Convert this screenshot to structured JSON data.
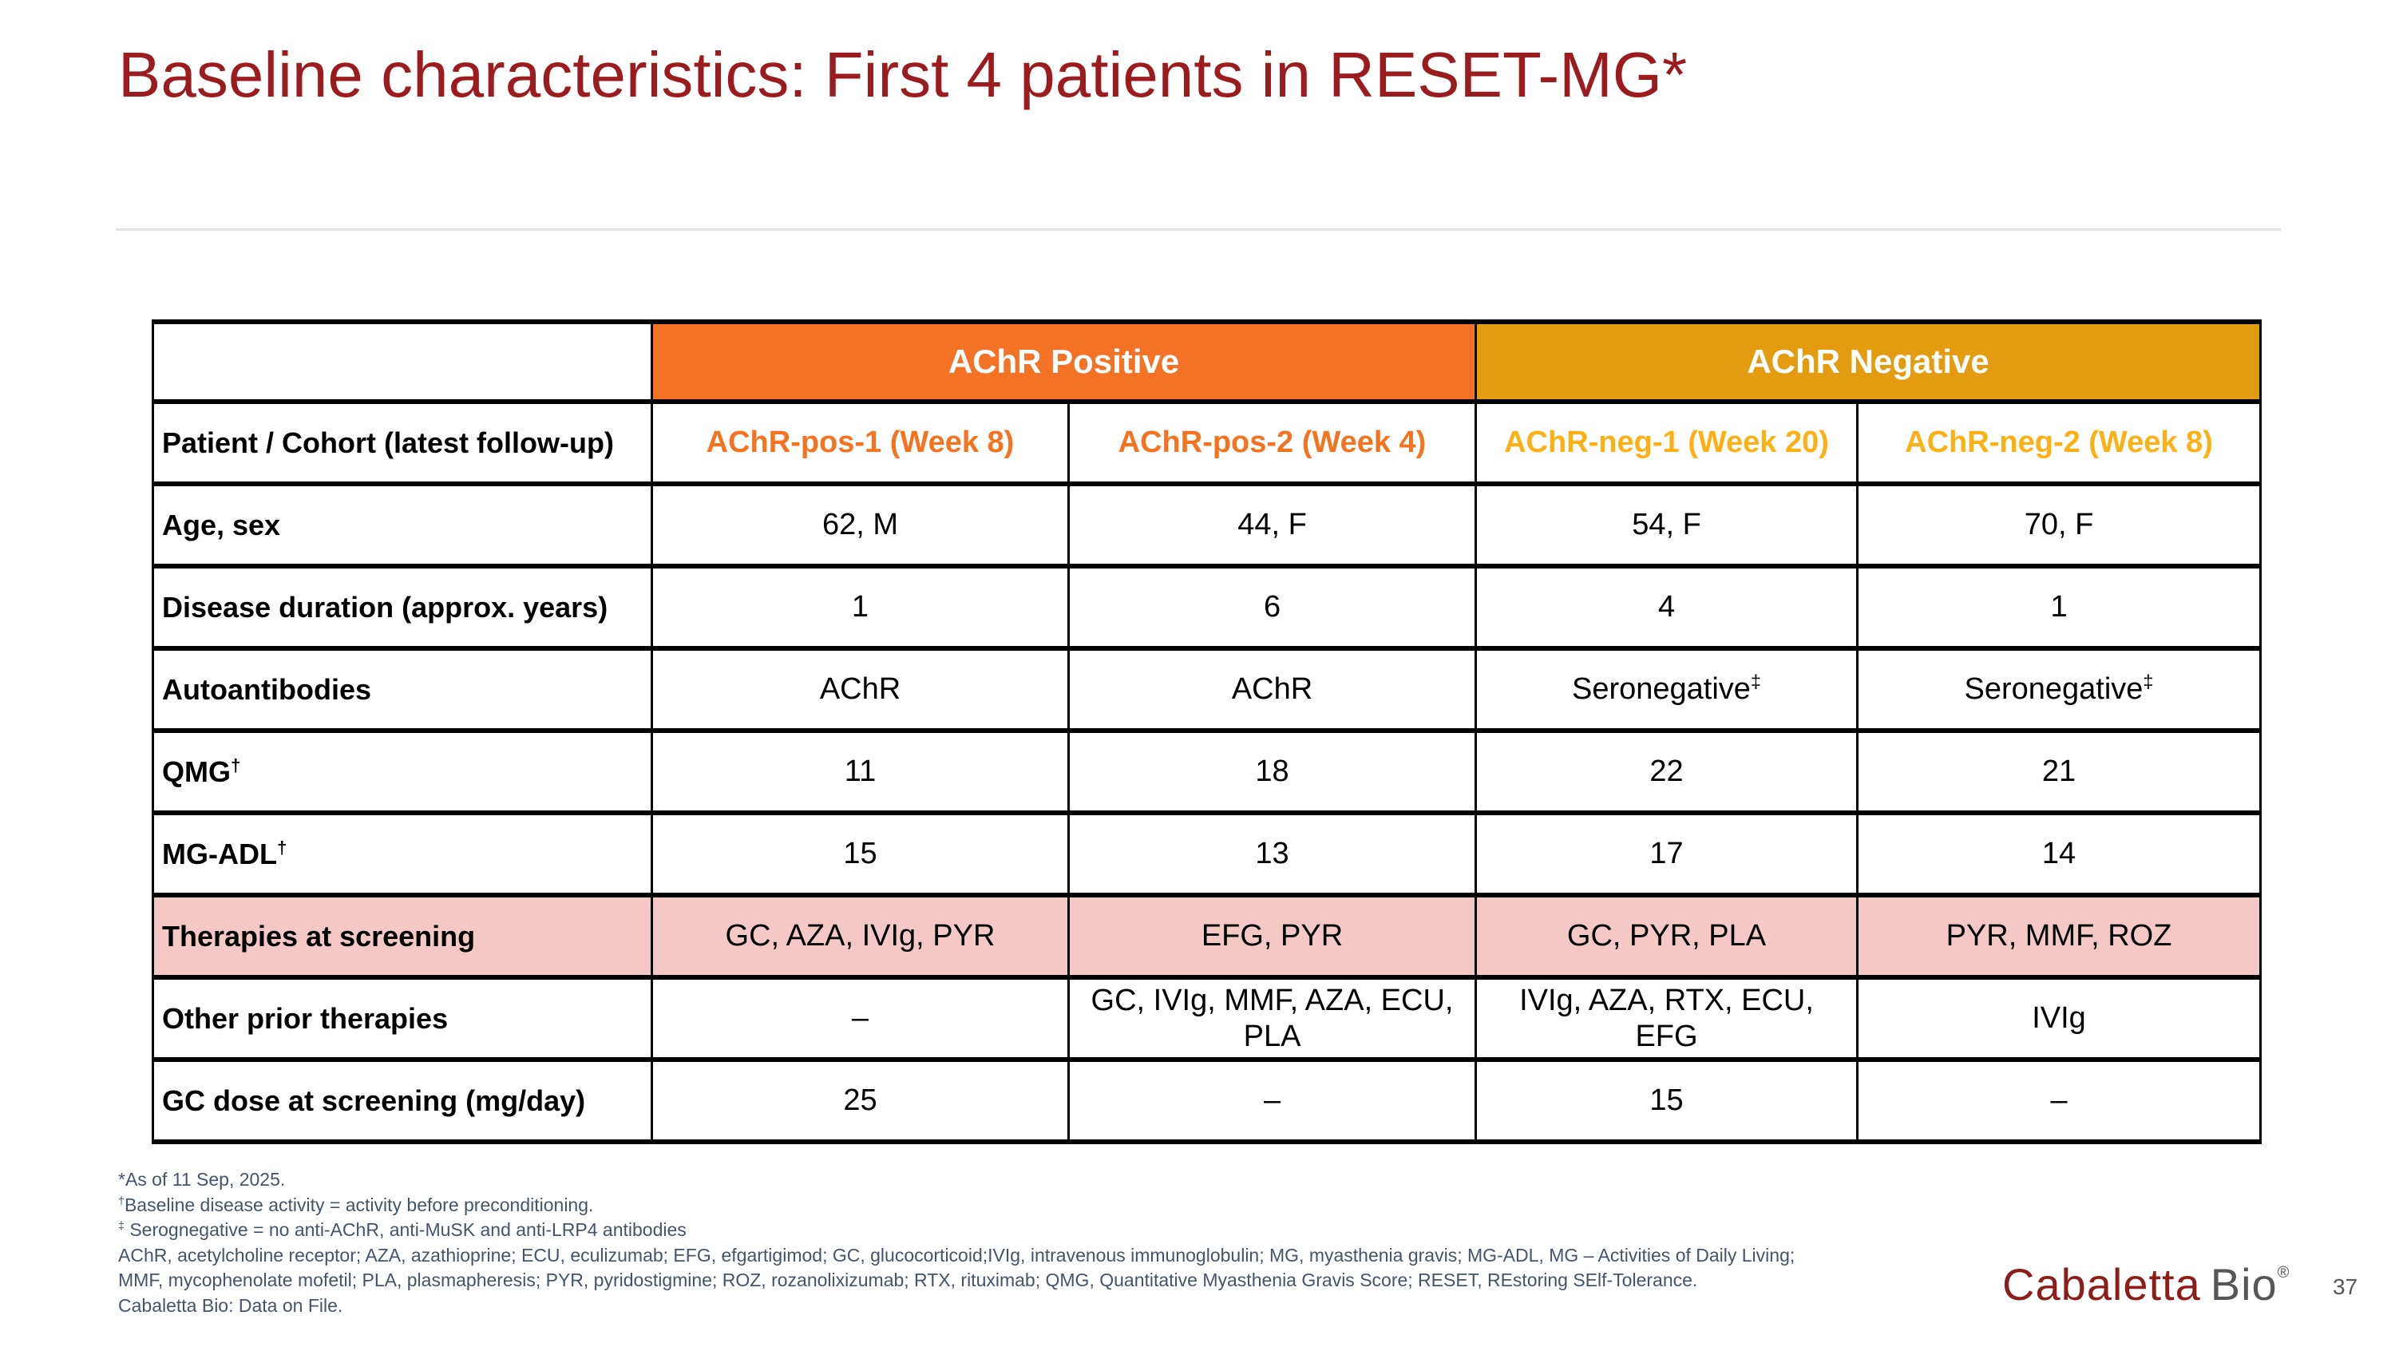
{
  "slide": {
    "title": "Baseline characteristics: First 4 patients in RESET-MG*",
    "page_number": "37",
    "logo": {
      "brand_primary": "Cabaletta",
      "brand_secondary": "Bio",
      "registered_mark": "®"
    }
  },
  "colors": {
    "title_red": "#9B1C1E",
    "achr_positive_orange": "#F37226",
    "achr_negative_gold": "#E39B10",
    "pos_text_orange": "#F47321",
    "neg_text_gold": "#FBB116",
    "therapies_row_pink": "#F4C8C4",
    "footnote_slate": "#44546A",
    "logo_red": "#8C1D18",
    "logo_gray": "#55565A"
  },
  "table": {
    "group_headers": [
      {
        "label": "AChR Positive",
        "span": 2
      },
      {
        "label": "AChR Negative",
        "span": 2
      }
    ],
    "rows": [
      {
        "label": "Patient / Cohort (latest follow-up)",
        "patient_header": true,
        "highlight": false,
        "cells": [
          "AChR-pos-1 (Week 8)",
          "AChR-pos-2 (Week 4)",
          "AChR-neg-1 (Week 20)",
          "AChR-neg-2 (Week 8)"
        ]
      },
      {
        "label": "Age, sex",
        "patient_header": false,
        "highlight": false,
        "cells": [
          "62, M",
          "44, F",
          "54, F",
          "70, F"
        ]
      },
      {
        "label": "Disease duration (approx. years)",
        "patient_header": false,
        "highlight": false,
        "cells": [
          "1",
          "6",
          "4",
          "1"
        ]
      },
      {
        "label": "Autoantibodies",
        "patient_header": false,
        "highlight": false,
        "cells": [
          "AChR",
          "AChR",
          "Seronegative‡",
          "Seronegative‡"
        ]
      },
      {
        "label": "QMG†",
        "patient_header": false,
        "highlight": false,
        "cells": [
          "11",
          "18",
          "22",
          "21"
        ]
      },
      {
        "label": "MG-ADL†",
        "patient_header": false,
        "highlight": false,
        "cells": [
          "15",
          "13",
          "17",
          "14"
        ]
      },
      {
        "label": "Therapies at screening",
        "patient_header": false,
        "highlight": true,
        "cells": [
          "GC, AZA, IVIg, PYR",
          "EFG, PYR",
          "GC, PYR, PLA",
          "PYR, MMF, ROZ"
        ]
      },
      {
        "label": "Other prior therapies",
        "patient_header": false,
        "highlight": false,
        "cells": [
          "–",
          "GC, IVIg, MMF, AZA, ECU,\nPLA",
          "IVIg, AZA, RTX, ECU,\nEFG",
          "IVIg"
        ]
      },
      {
        "label": "GC dose at screening (mg/day)",
        "patient_header": false,
        "highlight": false,
        "cells": [
          "25",
          "–",
          "15",
          "–"
        ]
      }
    ]
  },
  "footnotes": [
    "*As of 11 Sep, 2025.",
    "†Baseline disease activity = activity before preconditioning.",
    "‡ Serognegative = no anti-AChR, anti-MuSK and anti-LRP4 antibodies",
    "AChR, acetylcholine receptor; AZA, azathioprine; ECU, eculizumab; EFG, efgartigimod; GC, glucocorticoid;IVIg, intravenous immunoglobulin; MG, myasthenia gravis; MG-ADL, MG – Activities of Daily Living;",
    "MMF, mycophenolate mofetil; PLA, plasmapheresis; PYR, pyridostigmine; ROZ, rozanolixizumab; RTX, rituximab; QMG, Quantitative Myasthenia Gravis Score; RESET, REstoring SElf-Tolerance.",
    "Cabaletta Bio: Data on File."
  ]
}
